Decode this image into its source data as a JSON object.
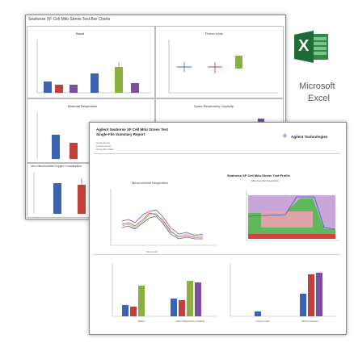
{
  "back_sheet": {
    "title": "Seahorse XF Cell Mito Stress Test Bar Charts",
    "panels": [
      {
        "label": "Basal"
      },
      {
        "label": "Proton Leak"
      },
      {
        "label": "Maximal Respiration"
      },
      {
        "label": "Spare Respiratory Capacity"
      },
      {
        "label": "Non-mitochondrial Oxygen Consumption"
      }
    ]
  },
  "excel_logo": {
    "letter": "X",
    "line1": "Microsoft",
    "line2": "Excel",
    "colors": {
      "dark": "#1e6b35",
      "mid": "#2f8a46",
      "light": "#7bc28f"
    }
  },
  "front_report": {
    "title_line1": "Agilent Seahorse XF Cell Mito Stress Test",
    "title_line2": "Single-File Summary Report",
    "vendor": "Agilent Technologies",
    "assay_name": "Assay Name",
    "project_name": "Project Name",
    "assay_run_date": "Assay Run Date",
    "ocr_title": "Mitochondrial Respiration",
    "profile_title": "Seahorse XF Cell Mito Stress Test Profile",
    "profile_subtitle": "Mitochondrial Respiration",
    "time_label": "Time (min)",
    "bottom_labels": [
      "Basal",
      "Spare Respiratory Capacity",
      "Proton Leak",
      "ATP Production"
    ]
  },
  "colors": {
    "blue": "#3a64b0",
    "red": "#c0413c",
    "green": "#8cb040",
    "purple": "#7a4fa0",
    "sheet_border": "#9a9a9a",
    "excel_label": "#555555"
  }
}
